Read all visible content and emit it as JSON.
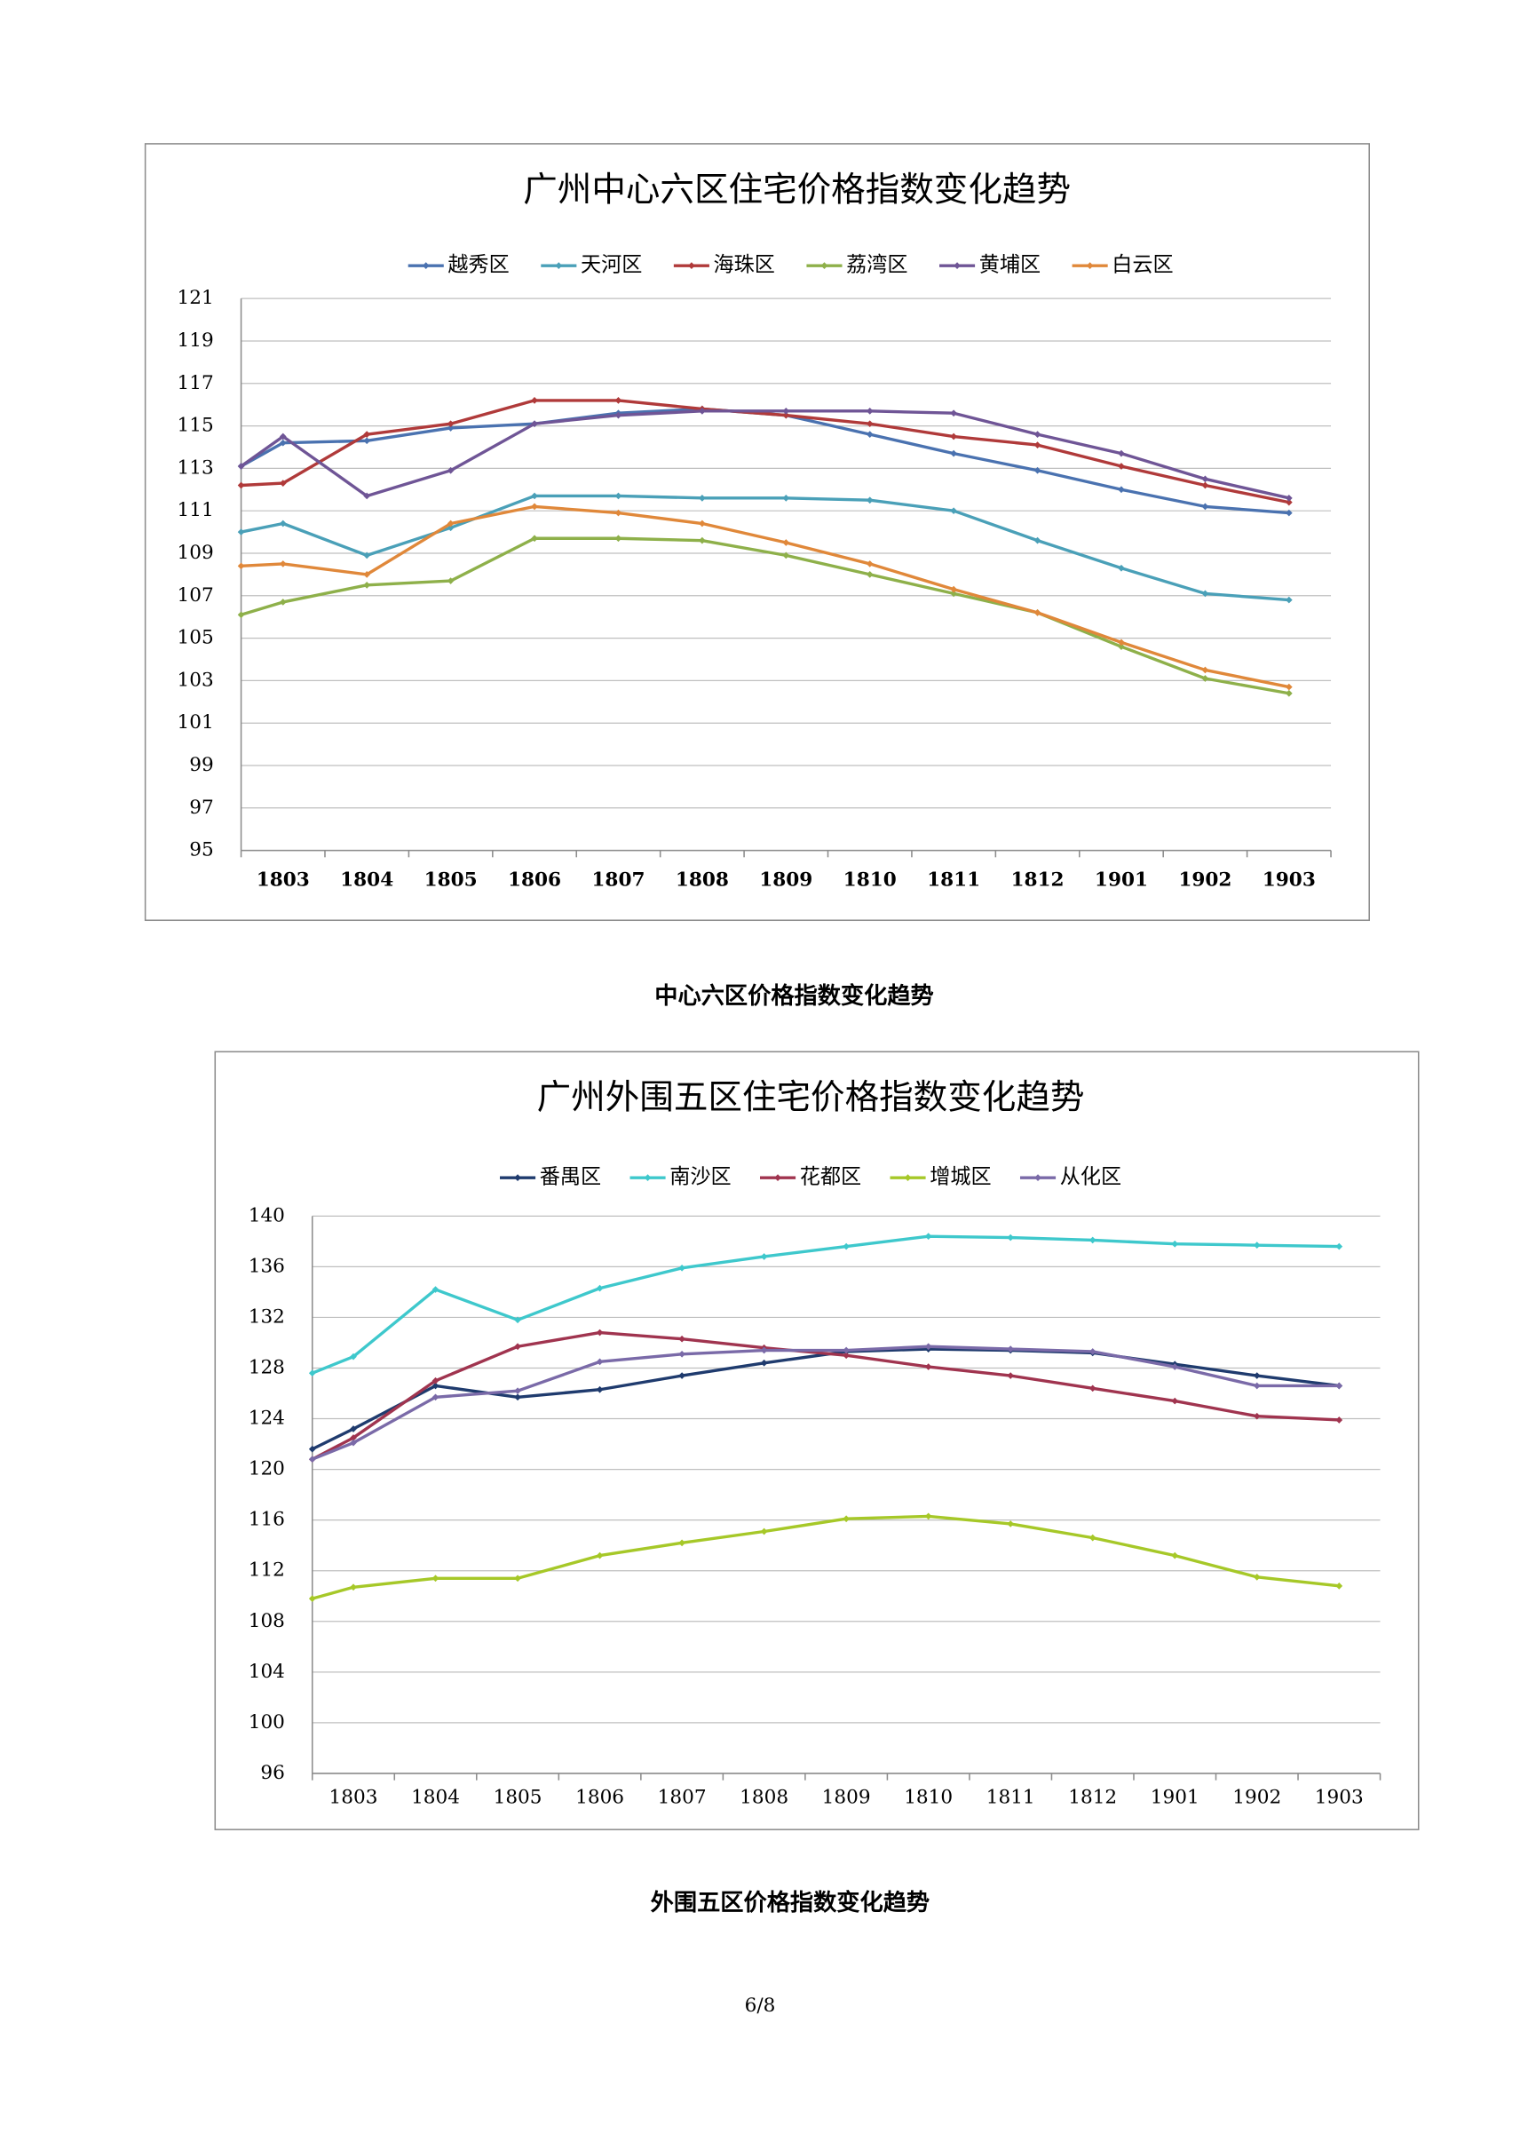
{
  "chart_data": [
    {
      "type": "line",
      "title": "广州中心六区住宅价格指数变化趋势",
      "categories": [
        null,
        "1803",
        "1804",
        "1805",
        "1806",
        "1807",
        "1808",
        "1809",
        "1810",
        "1811",
        "1812",
        "1901",
        "1902",
        "1903"
      ],
      "ylim": [
        95,
        121
      ],
      "yticks": [
        95,
        97,
        99,
        101,
        103,
        105,
        107,
        109,
        111,
        113,
        115,
        117,
        119,
        121
      ],
      "grid": true,
      "legend": "top",
      "series": [
        {
          "name": "越秀区",
          "color": "#4a72b0",
          "values": [
            113.1,
            114.2,
            114.3,
            114.9,
            115.1,
            115.6,
            115.8,
            115.5,
            114.6,
            113.7,
            112.9,
            112.0,
            111.2,
            110.9
          ]
        },
        {
          "name": "天河区",
          "color": "#4aa0b8",
          "values": [
            110.0,
            110.4,
            108.9,
            110.2,
            111.7,
            111.7,
            111.6,
            111.6,
            111.5,
            111.0,
            109.6,
            108.3,
            107.1,
            106.8
          ]
        },
        {
          "name": "海珠区",
          "color": "#b03a3a",
          "values": [
            112.2,
            112.3,
            114.6,
            115.1,
            116.2,
            116.2,
            115.8,
            115.5,
            115.1,
            114.5,
            114.1,
            113.1,
            112.2,
            111.4
          ]
        },
        {
          "name": "荔湾区",
          "color": "#8eb04a",
          "values": [
            106.1,
            106.7,
            107.5,
            107.7,
            109.7,
            109.7,
            109.6,
            108.9,
            108.0,
            107.1,
            106.2,
            104.6,
            103.1,
            102.4
          ]
        },
        {
          "name": "黄埔区",
          "color": "#6f5596",
          "values": [
            113.1,
            114.5,
            111.7,
            112.9,
            115.1,
            115.5,
            115.7,
            115.7,
            115.7,
            115.6,
            114.6,
            113.7,
            112.5,
            111.6
          ]
        },
        {
          "name": "白云区",
          "color": "#e0883a",
          "values": [
            108.4,
            108.5,
            108.0,
            110.4,
            111.2,
            110.9,
            110.4,
            109.5,
            108.5,
            107.3,
            106.2,
            104.8,
            103.5,
            102.7
          ]
        }
      ]
    },
    {
      "type": "line",
      "title": "广州外围五区住宅价格指数变化趋势",
      "categories": [
        null,
        "1803",
        "1804",
        "1805",
        "1806",
        "1807",
        "1808",
        "1809",
        "1810",
        "1811",
        "1812",
        "1901",
        "1902",
        "1903"
      ],
      "ylim": [
        96,
        140
      ],
      "yticks": [
        96,
        100,
        104,
        108,
        112,
        116,
        120,
        124,
        128,
        132,
        136,
        140
      ],
      "grid": true,
      "legend": "top",
      "series": [
        {
          "name": "番禺区",
          "color": "#1f3b6e",
          "values": [
            121.6,
            123.2,
            126.6,
            125.7,
            126.3,
            127.4,
            128.4,
            129.3,
            129.5,
            129.4,
            129.2,
            128.3,
            127.4,
            126.6
          ]
        },
        {
          "name": "南沙区",
          "color": "#3ec8cc",
          "values": [
            127.6,
            128.9,
            134.2,
            131.8,
            134.3,
            135.9,
            136.8,
            137.6,
            138.4,
            138.3,
            138.1,
            137.8,
            137.7,
            137.6
          ]
        },
        {
          "name": "花都区",
          "color": "#a0344f",
          "values": [
            120.8,
            122.5,
            127.0,
            129.7,
            130.8,
            130.3,
            129.6,
            129.0,
            128.1,
            127.4,
            126.4,
            125.4,
            124.2,
            123.9
          ]
        },
        {
          "name": "增城区",
          "color": "#a6c828",
          "values": [
            109.8,
            110.7,
            111.4,
            111.4,
            113.2,
            114.2,
            115.1,
            116.1,
            116.3,
            115.7,
            114.6,
            113.2,
            111.5,
            110.8
          ]
        },
        {
          "name": "从化区",
          "color": "#7a6aa8",
          "values": [
            120.8,
            122.1,
            125.7,
            126.2,
            128.5,
            129.1,
            129.4,
            129.4,
            129.7,
            129.5,
            129.3,
            128.1,
            126.6,
            126.6
          ]
        }
      ]
    }
  ],
  "captions": [
    "中心六区价格指数变化趋势",
    "外围五区价格指数变化趋势"
  ],
  "page_number": "6/8"
}
